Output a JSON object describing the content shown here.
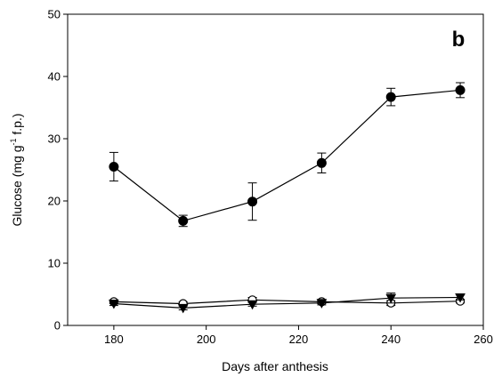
{
  "chart_data": {
    "type": "line",
    "panel_label": "b",
    "xlabel": "Days after anthesis",
    "ylabel": "Glucose (mg g",
    "ylabel_superscript": "-1",
    "ylabel_suffix": " f.p.)",
    "xlim": [
      170,
      260
    ],
    "ylim": [
      0,
      50
    ],
    "xticks": [
      180,
      200,
      220,
      240,
      260
    ],
    "yticks": [
      0,
      10,
      20,
      30,
      40,
      50
    ],
    "grid": false,
    "series": [
      {
        "marker": "filled-circle",
        "color": "#000000",
        "points": [
          {
            "x": 180,
            "y": 25.5,
            "err": 2.3
          },
          {
            "x": 195,
            "y": 16.8,
            "err": 0.9
          },
          {
            "x": 210,
            "y": 19.9,
            "err": 3.0
          },
          {
            "x": 225,
            "y": 26.1,
            "err": 1.6
          },
          {
            "x": 240,
            "y": 36.7,
            "err": 1.4
          },
          {
            "x": 255,
            "y": 37.8,
            "err": 1.2
          }
        ]
      },
      {
        "marker": "open-circle",
        "color": "#000000",
        "points": [
          {
            "x": 180,
            "y": 3.8,
            "err": 0.3
          },
          {
            "x": 195,
            "y": 3.5,
            "err": 0.3
          },
          {
            "x": 210,
            "y": 4.1,
            "err": 0.4
          },
          {
            "x": 225,
            "y": 3.8,
            "err": 0.3
          },
          {
            "x": 240,
            "y": 3.6,
            "err": 0.4
          },
          {
            "x": 255,
            "y": 3.9,
            "err": 0.3
          }
        ]
      },
      {
        "marker": "filled-triangle-down",
        "color": "#000000",
        "points": [
          {
            "x": 180,
            "y": 3.5,
            "err": 0.3
          },
          {
            "x": 195,
            "y": 2.8,
            "err": 0.3
          },
          {
            "x": 210,
            "y": 3.4,
            "err": 0.3
          },
          {
            "x": 225,
            "y": 3.6,
            "err": 0.3
          },
          {
            "x": 240,
            "y": 4.4,
            "err": 0.8
          },
          {
            "x": 255,
            "y": 4.5,
            "err": 0.4
          }
        ]
      }
    ]
  }
}
